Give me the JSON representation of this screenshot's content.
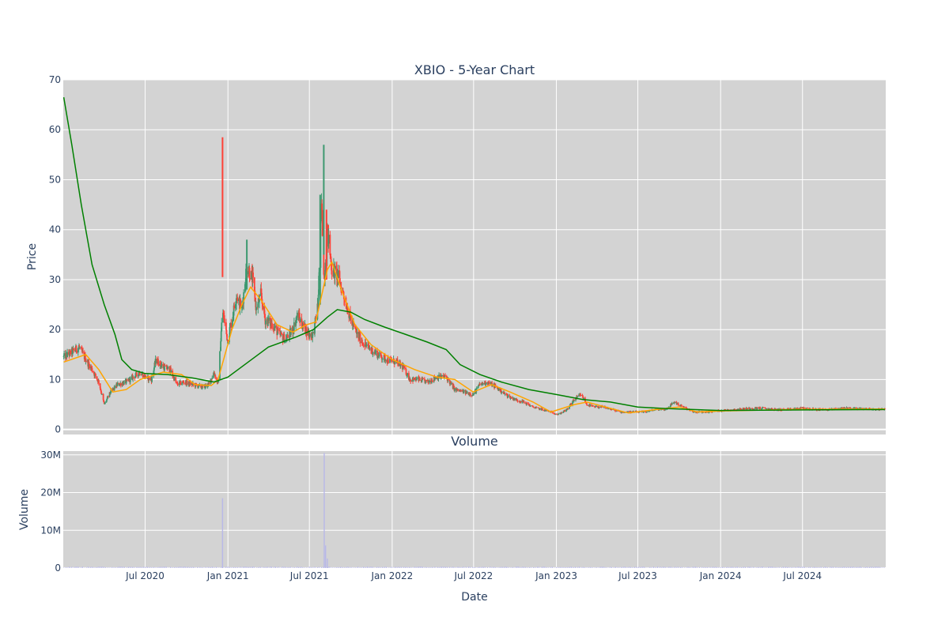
{
  "chart_data": [
    {
      "type": "candlestick",
      "title": "XBIO - 5-Year Chart",
      "ylabel": "Price",
      "xlabel": "",
      "xlim": [
        "2020-01-01",
        "2025-01-02"
      ],
      "ylim": [
        -1,
        70
      ],
      "y_ticks": [
        0,
        10,
        20,
        30,
        40,
        50,
        60,
        70
      ],
      "x_ticks": [
        {
          "date": "2020-07-01",
          "label": "Jul 2020"
        },
        {
          "date": "2021-01-01",
          "label": "Jan 2021"
        },
        {
          "date": "2021-07-01",
          "label": "Jul 2021"
        },
        {
          "date": "2022-01-01",
          "label": "Jan 2022"
        },
        {
          "date": "2022-07-01",
          "label": "Jul 2022"
        },
        {
          "date": "2023-01-01",
          "label": "Jan 2023"
        },
        {
          "date": "2023-07-01",
          "label": "Jul 2023"
        },
        {
          "date": "2024-01-01",
          "label": "Jan 2024"
        },
        {
          "date": "2024-07-01",
          "label": "Jul 2024"
        }
      ],
      "show_x_tick_labels": false,
      "grid": true,
      "colors": {
        "plot_bg": "#d3d3d3",
        "grid": "#ffffff",
        "up": "#3d9970",
        "down": "#ff4136",
        "ma_short": "#ffa500",
        "ma_long": "#008000"
      },
      "price_path": [
        [
          "2020-01-02",
          14.5
        ],
        [
          "2020-01-20",
          15.5
        ],
        [
          "2020-02-05",
          16.5
        ],
        [
          "2020-02-20",
          14.0
        ],
        [
          "2020-03-05",
          12.0
        ],
        [
          "2020-03-20",
          9.5
        ],
        [
          "2020-04-01",
          5.0
        ],
        [
          "2020-04-15",
          7.5
        ],
        [
          "2020-05-01",
          9.0
        ],
        [
          "2020-05-20",
          9.5
        ],
        [
          "2020-06-05",
          10.5
        ],
        [
          "2020-06-20",
          11.5
        ],
        [
          "2020-07-01",
          10.5
        ],
        [
          "2020-07-15",
          10.0
        ],
        [
          "2020-07-25",
          14.0
        ],
        [
          "2020-08-10",
          12.5
        ],
        [
          "2020-08-25",
          12.0
        ],
        [
          "2020-09-10",
          9.0
        ],
        [
          "2020-09-25",
          9.5
        ],
        [
          "2020-10-15",
          9.0
        ],
        [
          "2020-11-05",
          8.5
        ],
        [
          "2020-11-20",
          9.0
        ],
        [
          "2020-12-01",
          11.5
        ],
        [
          "2020-12-10",
          9.0
        ],
        [
          "2020-12-20",
          24.0
        ],
        [
          "2020-12-31",
          18.0
        ],
        [
          "2021-01-10",
          22.0
        ],
        [
          "2021-01-20",
          27.0
        ],
        [
          "2021-02-01",
          24.0
        ],
        [
          "2021-02-12",
          33.0
        ],
        [
          "2021-02-25",
          30.0
        ],
        [
          "2021-03-05",
          24.0
        ],
        [
          "2021-03-15",
          27.0
        ],
        [
          "2021-03-25",
          22.0
        ],
        [
          "2021-04-10",
          21.0
        ],
        [
          "2021-04-25",
          19.0
        ],
        [
          "2021-05-10",
          18.0
        ],
        [
          "2021-05-25",
          20.0
        ],
        [
          "2021-06-05",
          23.0
        ],
        [
          "2021-06-15",
          21.0
        ],
        [
          "2021-07-01",
          19.0
        ],
        [
          "2021-07-10",
          19.0
        ],
        [
          "2021-07-20",
          25.0
        ],
        [
          "2021-07-28",
          45.0
        ],
        [
          "2021-08-03",
          30.0
        ],
        [
          "2021-08-10",
          40.0
        ],
        [
          "2021-08-20",
          32.0
        ],
        [
          "2021-09-01",
          31.0
        ],
        [
          "2021-09-15",
          27.0
        ],
        [
          "2021-10-01",
          22.0
        ],
        [
          "2021-10-15",
          19.0
        ],
        [
          "2021-11-01",
          17.0
        ],
        [
          "2021-11-15",
          16.0
        ],
        [
          "2021-12-01",
          15.0
        ],
        [
          "2021-12-20",
          14.0
        ],
        [
          "2022-01-10",
          13.5
        ],
        [
          "2022-01-25",
          12.5
        ],
        [
          "2022-02-10",
          10.0
        ],
        [
          "2022-03-01",
          10.0
        ],
        [
          "2022-03-20",
          9.5
        ],
        [
          "2022-04-10",
          10.5
        ],
        [
          "2022-05-01",
          10.5
        ],
        [
          "2022-05-20",
          8.0
        ],
        [
          "2022-06-10",
          7.5
        ],
        [
          "2022-06-30",
          7.0
        ],
        [
          "2022-07-15",
          9.0
        ],
        [
          "2022-08-01",
          9.5
        ],
        [
          "2022-08-20",
          8.5
        ],
        [
          "2022-09-10",
          7.0
        ],
        [
          "2022-10-01",
          6.0
        ],
        [
          "2022-10-20",
          5.5
        ],
        [
          "2022-11-10",
          4.5
        ],
        [
          "2022-12-01",
          4.0
        ],
        [
          "2022-12-20",
          3.5
        ],
        [
          "2023-01-05",
          3.0
        ],
        [
          "2023-01-25",
          4.0
        ],
        [
          "2023-02-10",
          6.0
        ],
        [
          "2023-02-25",
          7.0
        ],
        [
          "2023-03-10",
          5.0
        ],
        [
          "2023-03-25",
          4.5
        ],
        [
          "2023-04-15",
          4.5
        ],
        [
          "2023-05-05",
          4.0
        ],
        [
          "2023-05-25",
          3.5
        ],
        [
          "2023-06-20",
          3.5
        ],
        [
          "2023-07-15",
          3.5
        ],
        [
          "2023-08-10",
          4.0
        ],
        [
          "2023-09-01",
          4.0
        ],
        [
          "2023-09-20",
          5.5
        ],
        [
          "2023-10-10",
          4.5
        ],
        [
          "2023-11-01",
          3.5
        ],
        [
          "2023-12-01",
          3.5
        ],
        [
          "2024-01-01",
          3.8
        ],
        [
          "2024-02-01",
          4.0
        ],
        [
          "2024-03-01",
          4.2
        ],
        [
          "2024-04-01",
          4.3
        ],
        [
          "2024-05-01",
          4.0
        ],
        [
          "2024-06-01",
          4.0
        ],
        [
          "2024-07-01",
          4.3
        ],
        [
          "2024-08-01",
          4.0
        ],
        [
          "2024-09-01",
          4.0
        ],
        [
          "2024-10-01",
          4.3
        ],
        [
          "2024-11-01",
          4.2
        ],
        [
          "2024-12-01",
          4.1
        ],
        [
          "2024-12-31",
          4.0
        ]
      ],
      "spikes": [
        {
          "date": "2020-12-20",
          "low": 30.5,
          "high": 58.5,
          "direction": "down"
        },
        {
          "date": "2021-02-12",
          "low": 28.0,
          "high": 38.0,
          "direction": "up"
        },
        {
          "date": "2021-07-25",
          "low": 25.0,
          "high": 47.0,
          "direction": "up"
        },
        {
          "date": "2021-08-02",
          "low": 35.0,
          "high": 57.0,
          "direction": "up"
        },
        {
          "date": "2021-08-08",
          "low": 30.0,
          "high": 44.0,
          "direction": "down"
        }
      ],
      "ma_short": [
        [
          "2020-01-02",
          13.5
        ],
        [
          "2020-02-20",
          15.0
        ],
        [
          "2020-03-20",
          12.0
        ],
        [
          "2020-04-20",
          7.5
        ],
        [
          "2020-05-20",
          8.0
        ],
        [
          "2020-06-20",
          10.0
        ],
        [
          "2020-08-10",
          11.5
        ],
        [
          "2020-09-20",
          11.0
        ],
        [
          "2020-10-20",
          9.0
        ],
        [
          "2020-11-25",
          8.8
        ],
        [
          "2020-12-10",
          10.0
        ],
        [
          "2021-01-10",
          20.0
        ],
        [
          "2021-02-01",
          25.0
        ],
        [
          "2021-02-20",
          28.5
        ],
        [
          "2021-03-15",
          26.0
        ],
        [
          "2021-04-20",
          21.0
        ],
        [
          "2021-05-25",
          19.5
        ],
        [
          "2021-06-25",
          21.0
        ],
        [
          "2021-07-15",
          21.5
        ],
        [
          "2021-08-10",
          32.0
        ],
        [
          "2021-08-20",
          33.5
        ],
        [
          "2021-09-10",
          28.0
        ],
        [
          "2021-10-10",
          21.0
        ],
        [
          "2021-11-15",
          17.0
        ],
        [
          "2022-01-01",
          14.0
        ],
        [
          "2022-02-20",
          12.0
        ],
        [
          "2022-04-10",
          10.5
        ],
        [
          "2022-05-20",
          10.0
        ],
        [
          "2022-06-30",
          7.5
        ],
        [
          "2022-08-10",
          9.0
        ],
        [
          "2022-09-20",
          7.5
        ],
        [
          "2022-11-10",
          5.5
        ],
        [
          "2022-12-20",
          3.5
        ],
        [
          "2023-02-10",
          5.0
        ],
        [
          "2023-03-10",
          5.5
        ],
        [
          "2023-04-20",
          4.5
        ],
        [
          "2023-06-10",
          3.3
        ],
        [
          "2023-08-10",
          4.0
        ],
        [
          "2023-10-01",
          4.5
        ],
        [
          "2023-11-10",
          3.5
        ],
        [
          "2024-01-01",
          3.7
        ],
        [
          "2024-06-01",
          4.0
        ],
        [
          "2024-12-31",
          4.1
        ]
      ],
      "ma_long": [
        [
          "2020-01-02",
          66.5
        ],
        [
          "2020-01-20",
          57.0
        ],
        [
          "2020-02-10",
          45.0
        ],
        [
          "2020-03-05",
          33.0
        ],
        [
          "2020-04-01",
          25.0
        ],
        [
          "2020-04-25",
          19.0
        ],
        [
          "2020-05-10",
          14.0
        ],
        [
          "2020-06-01",
          12.0
        ],
        [
          "2020-07-01",
          11.2
        ],
        [
          "2020-08-20",
          11.0
        ],
        [
          "2020-10-15",
          10.3
        ],
        [
          "2020-12-01",
          9.5
        ],
        [
          "2021-01-01",
          10.5
        ],
        [
          "2021-02-15",
          13.5
        ],
        [
          "2021-04-01",
          16.5
        ],
        [
          "2021-06-01",
          18.5
        ],
        [
          "2021-07-10",
          20.0
        ],
        [
          "2021-08-10",
          22.5
        ],
        [
          "2021-09-01",
          24.0
        ],
        [
          "2021-10-01",
          23.5
        ],
        [
          "2021-11-01",
          22.0
        ],
        [
          "2021-12-15",
          20.5
        ],
        [
          "2022-02-01",
          19.0
        ],
        [
          "2022-03-20",
          17.5
        ],
        [
          "2022-05-01",
          16.0
        ],
        [
          "2022-06-01",
          13.0
        ],
        [
          "2022-07-15",
          11.0
        ],
        [
          "2022-09-01",
          9.5
        ],
        [
          "2022-11-01",
          8.0
        ],
        [
          "2023-01-01",
          7.0
        ],
        [
          "2023-03-01",
          6.0
        ],
        [
          "2023-05-01",
          5.5
        ],
        [
          "2023-07-01",
          4.5
        ],
        [
          "2023-09-01",
          4.2
        ],
        [
          "2023-11-01",
          4.0
        ],
        [
          "2024-01-01",
          3.8
        ],
        [
          "2024-06-01",
          3.9
        ],
        [
          "2024-12-31",
          4.0
        ]
      ]
    },
    {
      "type": "bar",
      "title": "Volume",
      "ylabel": "Volume",
      "xlabel": "Date",
      "xlim": [
        "2020-01-01",
        "2025-01-02"
      ],
      "ylim": [
        0,
        31000000
      ],
      "y_ticks": [
        {
          "value": 0,
          "label": "0"
        },
        {
          "value": 10000000,
          "label": "10M"
        },
        {
          "value": 20000000,
          "label": "20M"
        },
        {
          "value": 30000000,
          "label": "30M"
        }
      ],
      "x_ticks": [
        {
          "date": "2020-07-01",
          "label": "Jul 2020"
        },
        {
          "date": "2021-01-01",
          "label": "Jan 2021"
        },
        {
          "date": "2021-07-01",
          "label": "Jul 2021"
        },
        {
          "date": "2022-01-01",
          "label": "Jan 2022"
        },
        {
          "date": "2022-07-01",
          "label": "Jul 2022"
        },
        {
          "date": "2023-01-01",
          "label": "Jan 2023"
        },
        {
          "date": "2023-07-01",
          "label": "Jul 2023"
        },
        {
          "date": "2024-01-01",
          "label": "Jan 2024"
        },
        {
          "date": "2024-07-01",
          "label": "Jul 2024"
        }
      ],
      "grid": true,
      "colors": {
        "plot_bg": "#d3d3d3",
        "grid": "#ffffff",
        "bar": "#b8b8e8"
      },
      "volume_spikes": [
        {
          "date": "2020-12-20",
          "value": 18500000
        },
        {
          "date": "2021-08-03",
          "value": 30500000
        },
        {
          "date": "2021-08-06",
          "value": 6000000
        },
        {
          "date": "2021-08-10",
          "value": 2500000
        }
      ]
    }
  ]
}
